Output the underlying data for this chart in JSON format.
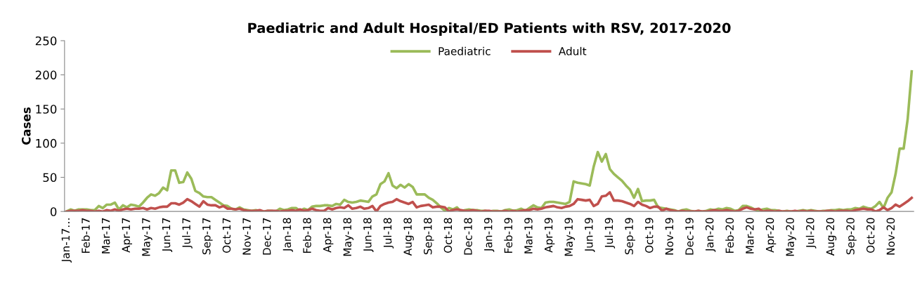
{
  "chart_data": {
    "type": "line",
    "title": "Paediatric and Adult Hospital/ED Patients with RSV, 2017-2020",
    "ylabel": "Cases",
    "categories": [
      "Jan-17…",
      null,
      null,
      null,
      null,
      "Feb-17",
      null,
      null,
      null,
      null,
      "Mar-17",
      null,
      null,
      null,
      null,
      "Apr-17",
      null,
      null,
      null,
      null,
      "May-17",
      null,
      null,
      null,
      null,
      "Jun-17",
      null,
      null,
      null,
      null,
      "Jul-17",
      null,
      null,
      null,
      null,
      "Sep-17",
      null,
      null,
      null,
      null,
      "Oct-17",
      null,
      null,
      null,
      null,
      "Nov-17",
      null,
      null,
      null,
      null,
      "Dec-17",
      null,
      null,
      null,
      null,
      "Jan-18",
      null,
      null,
      null,
      null,
      "Feb-18",
      null,
      null,
      null,
      null,
      "Apr-18",
      null,
      null,
      null,
      null,
      "May-18",
      null,
      null,
      null,
      null,
      "Jun-18",
      null,
      null,
      null,
      null,
      "Jul-18",
      null,
      null,
      null,
      null,
      "Aug-18",
      null,
      null,
      null,
      null,
      "Sep-18",
      null,
      null,
      null,
      null,
      "Oct-18",
      null,
      null,
      null,
      null,
      "Dec-18",
      null,
      null,
      null,
      null,
      "Jan-19",
      null,
      null,
      null,
      null,
      "Feb-19",
      null,
      null,
      null,
      null,
      "Mar-19",
      null,
      null,
      null,
      null,
      "Apr-19",
      null,
      null,
      null,
      null,
      "May-19",
      null,
      null,
      null,
      null,
      "Jun-19",
      null,
      null,
      null,
      null,
      "Jul-19",
      null,
      null,
      null,
      null,
      "Sep-19",
      null,
      null,
      null,
      null,
      "Oct-19",
      null,
      null,
      null,
      null,
      "Nov-19",
      null,
      null,
      null,
      null,
      "Dec-19",
      null,
      null,
      null,
      null,
      "Jan-20",
      null,
      null,
      null,
      null,
      "Feb-20",
      null,
      null,
      null,
      null,
      "Mar-20",
      null,
      null,
      null,
      null,
      "Apr-20",
      null,
      null,
      null,
      null,
      "May-20",
      null,
      null,
      null,
      null,
      "Jul-20",
      null,
      null,
      null,
      null,
      "Aug-20",
      null,
      null,
      null,
      null,
      "Sep-20",
      null,
      null,
      null,
      null,
      "Oct-20",
      null,
      null,
      null,
      null,
      "Nov-20",
      null,
      null,
      null,
      null,
      null
    ],
    "series": [
      {
        "name": "Paediatric",
        "color": "#9bbb59",
        "values": [
          0,
          3,
          1,
          3,
          3,
          3,
          2,
          2,
          8,
          5,
          10,
          10,
          13,
          3,
          9,
          6,
          10,
          9,
          7,
          13,
          20,
          25,
          23,
          27,
          35,
          31,
          60,
          60,
          42,
          43,
          57,
          48,
          30,
          27,
          22,
          21,
          21,
          17,
          13,
          9,
          8,
          4,
          3,
          6,
          3,
          2,
          1,
          2,
          1,
          0,
          1,
          1,
          0,
          4,
          2,
          3,
          5,
          5,
          1,
          4,
          2,
          7,
          8,
          8,
          9,
          9,
          8,
          11,
          10,
          17,
          14,
          13,
          14,
          16,
          15,
          14,
          22,
          25,
          40,
          44,
          56,
          38,
          34,
          39,
          35,
          40,
          36,
          25,
          25,
          25,
          20,
          17,
          12,
          6,
          1,
          5,
          3,
          6,
          0,
          2,
          3,
          2,
          2,
          1,
          1,
          0,
          1,
          1,
          0,
          2,
          3,
          1,
          2,
          4,
          1,
          5,
          9,
          6,
          5,
          13,
          14,
          14,
          13,
          12,
          11,
          14,
          44,
          42,
          41,
          40,
          38,
          66,
          87,
          73,
          84,
          62,
          55,
          50,
          45,
          38,
          32,
          20,
          33,
          15,
          16,
          16,
          17,
          6,
          5,
          4,
          3,
          2,
          0,
          2,
          3,
          1,
          0,
          1,
          0,
          1,
          3,
          2,
          4,
          3,
          5,
          4,
          1,
          2,
          8,
          8,
          6,
          3,
          1,
          3,
          4,
          2,
          2,
          1,
          0,
          1,
          0,
          0,
          1,
          2,
          1,
          2,
          1,
          0,
          1,
          1,
          2,
          2,
          3,
          2,
          3,
          3,
          5,
          4,
          7,
          5,
          4,
          8,
          14,
          5,
          20,
          28,
          55,
          92,
          92,
          135,
          205
        ]
      },
      {
        "name": "Adult",
        "color": "#c0504d",
        "values": [
          0,
          1,
          1,
          1,
          2,
          1,
          1,
          0,
          1,
          0,
          2,
          1,
          3,
          1,
          3,
          4,
          3,
          4,
          4,
          5,
          3,
          5,
          4,
          6,
          7,
          7,
          12,
          12,
          10,
          13,
          18,
          15,
          11,
          7,
          15,
          10,
          9,
          9,
          6,
          8,
          4,
          4,
          3,
          4,
          2,
          1,
          1,
          1,
          2,
          0,
          1,
          1,
          1,
          0,
          1,
          1,
          2,
          1,
          3,
          1,
          2,
          4,
          2,
          1,
          1,
          5,
          3,
          5,
          6,
          5,
          9,
          4,
          5,
          7,
          4,
          5,
          8,
          0,
          8,
          11,
          13,
          14,
          18,
          15,
          13,
          11,
          14,
          6,
          8,
          9,
          10,
          6,
          7,
          7,
          6,
          0,
          2,
          3,
          2,
          1,
          1,
          2,
          1,
          0,
          1,
          1,
          0,
          0,
          0,
          1,
          0,
          1,
          0,
          1,
          2,
          2,
          4,
          3,
          4,
          6,
          7,
          8,
          6,
          5,
          7,
          8,
          11,
          18,
          17,
          16,
          17,
          8,
          11,
          22,
          23,
          28,
          16,
          16,
          15,
          13,
          11,
          8,
          14,
          10,
          8,
          5,
          7,
          7,
          1,
          4,
          2,
          1,
          0,
          1,
          0,
          0,
          0,
          1,
          0,
          0,
          1,
          2,
          1,
          1,
          2,
          1,
          0,
          1,
          4,
          6,
          4,
          3,
          4,
          0,
          1,
          1,
          0,
          1,
          0,
          0,
          0,
          1,
          0,
          1,
          0,
          1,
          0,
          0,
          0,
          1,
          1,
          0,
          1,
          1,
          1,
          0,
          2,
          3,
          4,
          3,
          3,
          0,
          2,
          6,
          2,
          5,
          10,
          7,
          11,
          15,
          20
        ]
      }
    ],
    "ylim": [
      0,
      250
    ],
    "yticks": [
      0,
      50,
      100,
      150,
      200,
      250
    ],
    "legend": "top",
    "marker": "none",
    "line_style": "solid",
    "grid": false
  }
}
